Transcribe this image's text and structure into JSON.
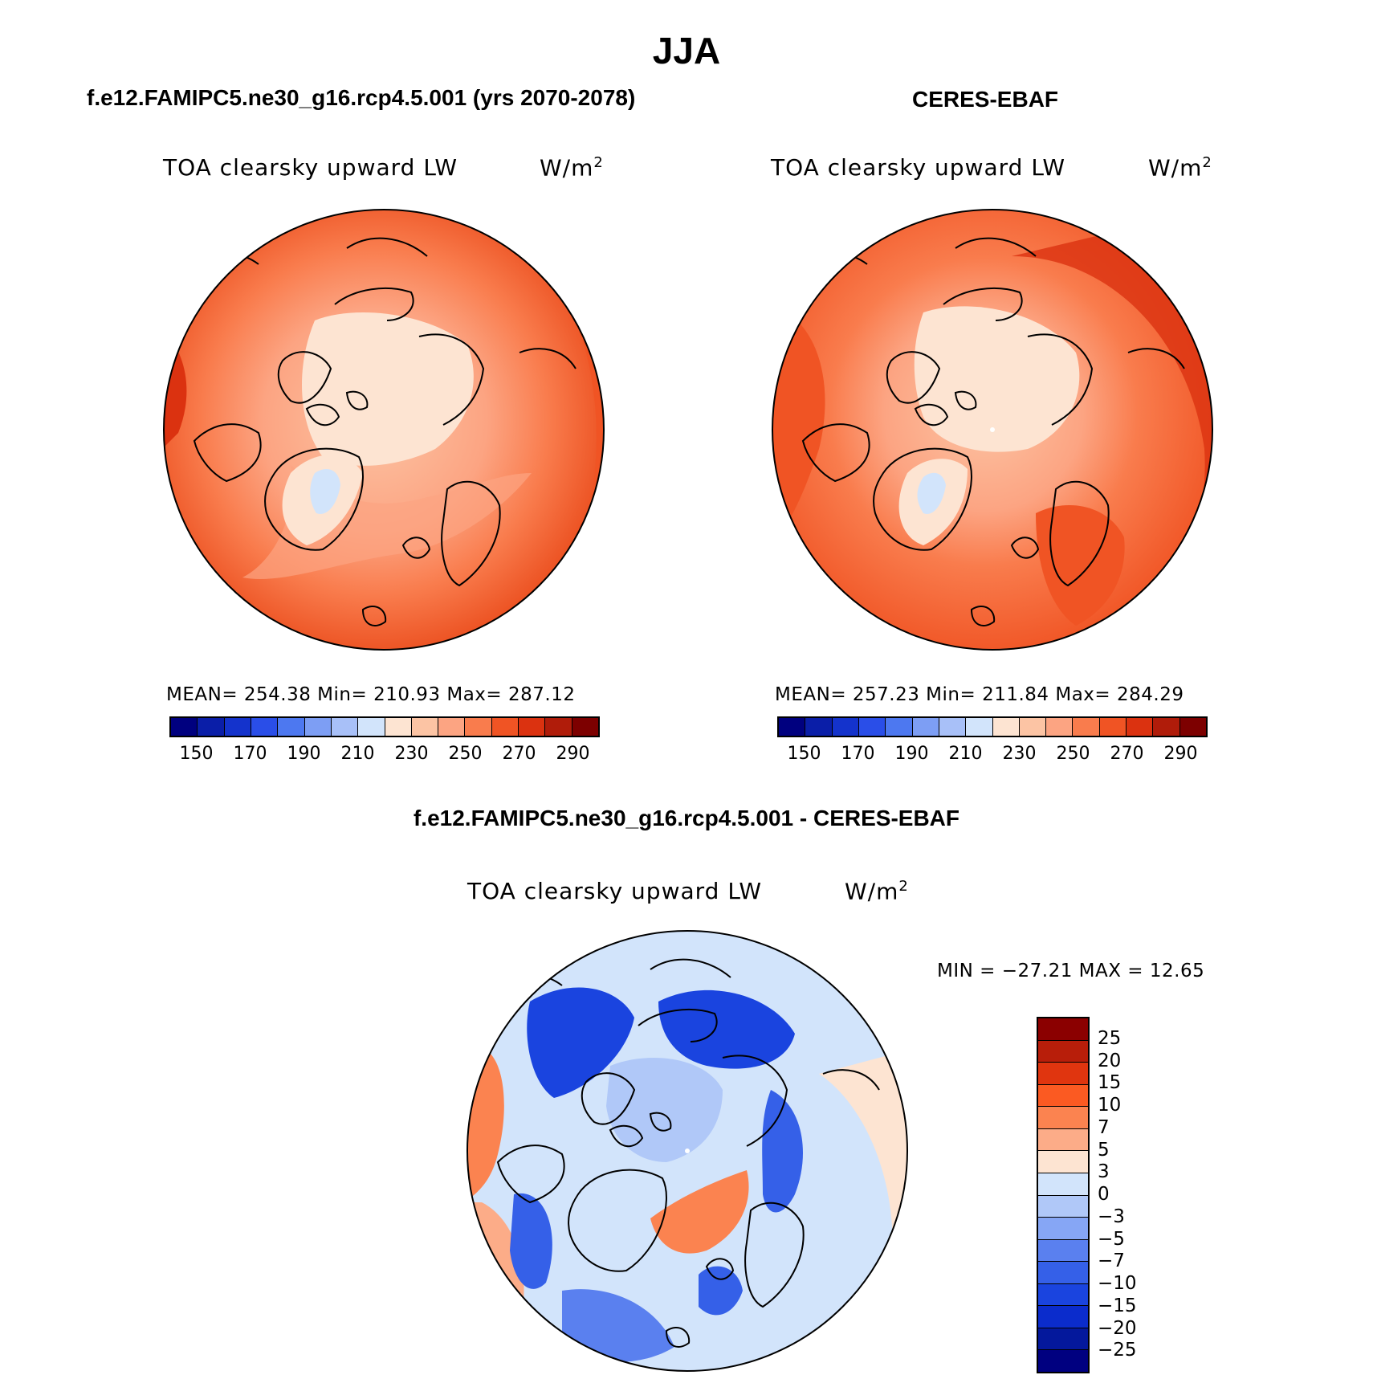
{
  "title": "JJA",
  "panels": {
    "model": {
      "subtitle": "f.e12.FAMIPC5.ne30_g16.rcp4.5.001 (yrs 2070-2078)",
      "label": "TOA clearsky upward LW",
      "units": "W/m",
      "units_sup": "2",
      "stats": "MEAN= 254.38   Min= 210.93   Max= 287.12"
    },
    "obs": {
      "subtitle": "CERES-EBAF",
      "label": "TOA clearsky upward LW",
      "units": "W/m",
      "units_sup": "2",
      "stats": "MEAN= 257.23   Min= 211.84   Max= 284.29"
    },
    "diff": {
      "subtitle": "f.e12.FAMIPC5.ne30_g16.rcp4.5.001 - CERES-EBAF",
      "label": "TOA clearsky upward LW",
      "units": "W/m",
      "units_sup": "2",
      "stats": "MIN = −27.21 MAX =   12.65"
    }
  },
  "chart_data": [
    {
      "type": "heatmap",
      "title": "TOA clearsky upward LW",
      "subtitle": "f.e12.FAMIPC5.ne30_g16.rcp4.5.001 (yrs 2070-2078)",
      "projection": "north polar stereographic",
      "units": "W/m2",
      "mean": 254.38,
      "min": 210.93,
      "max": 287.12,
      "colorbar_levels": [
        150,
        160,
        170,
        180,
        190,
        200,
        210,
        220,
        230,
        240,
        250,
        260,
        270,
        280,
        290
      ],
      "colorbar_tick_labels": [
        "150",
        "170",
        "190",
        "210",
        "230",
        "250",
        "270",
        "290"
      ],
      "colors": [
        "#00007f",
        "#0a1ea8",
        "#1433cc",
        "#2a4ee8",
        "#4d78f0",
        "#7d9ef4",
        "#a8c0f8",
        "#d2e4fb",
        "#fde4d2",
        "#fcc4a4",
        "#fca482",
        "#f97c4d",
        "#f05424",
        "#db3210",
        "#b01c0a",
        "#7d0000"
      ]
    },
    {
      "type": "heatmap",
      "title": "TOA clearsky upward LW",
      "subtitle": "CERES-EBAF",
      "projection": "north polar stereographic",
      "units": "W/m2",
      "mean": 257.23,
      "min": 211.84,
      "max": 284.29,
      "colorbar_levels": [
        150,
        160,
        170,
        180,
        190,
        200,
        210,
        220,
        230,
        240,
        250,
        260,
        270,
        280,
        290
      ],
      "colorbar_tick_labels": [
        "150",
        "170",
        "190",
        "210",
        "230",
        "250",
        "270",
        "290"
      ],
      "colors": [
        "#00007f",
        "#0a1ea8",
        "#1433cc",
        "#2a4ee8",
        "#4d78f0",
        "#7d9ef4",
        "#a8c0f8",
        "#d2e4fb",
        "#fde4d2",
        "#fcc4a4",
        "#fca482",
        "#f97c4d",
        "#f05424",
        "#db3210",
        "#b01c0a",
        "#7d0000"
      ]
    },
    {
      "type": "heatmap",
      "title": "TOA clearsky upward LW",
      "subtitle": "f.e12.FAMIPC5.ne30_g16.rcp4.5.001 - CERES-EBAF",
      "projection": "north polar stereographic",
      "units": "W/m2",
      "min": -27.21,
      "max": 12.65,
      "colorbar_tick_labels": [
        "25",
        "20",
        "15",
        "10",
        "7",
        "5",
        "3",
        "0",
        "−3",
        "−5",
        "−7",
        "−10",
        "−15",
        "−20",
        "−25"
      ],
      "colors": [
        "#8b0000",
        "#b81e0a",
        "#e0350f",
        "#fb5a22",
        "#fb8350",
        "#fcac88",
        "#fde4d2",
        "#d2e4fb",
        "#b0c8f8",
        "#86a6f5",
        "#5a80ef",
        "#3560e8",
        "#1a44df",
        "#0b2ccc",
        "#04189c",
        "#000080"
      ]
    }
  ],
  "legend": {
    "tick_labels_abs": [
      "150",
      "170",
      "190",
      "210",
      "230",
      "250",
      "270",
      "290"
    ],
    "tick_labels_diff": [
      "25",
      "20",
      "15",
      "10",
      "7",
      "5",
      "3",
      "0",
      "−3",
      "−5",
      "−7",
      "−10",
      "−15",
      "−20",
      "−25"
    ],
    "abs_colors": [
      "#00007f",
      "#0a1ea8",
      "#1433cc",
      "#2a4ee8",
      "#4d78f0",
      "#7d9ef4",
      "#a8c0f8",
      "#d2e4fb",
      "#fde4d2",
      "#fcc4a4",
      "#fca482",
      "#f97c4d",
      "#f05424",
      "#db3210",
      "#b01c0a",
      "#7d0000"
    ],
    "diff_colors": [
      "#8b0000",
      "#b81e0a",
      "#e0350f",
      "#fb5a22",
      "#fb8350",
      "#fcac88",
      "#fde4d2",
      "#d2e4fb",
      "#b0c8f8",
      "#86a6f5",
      "#5a80ef",
      "#3560e8",
      "#1a44df",
      "#0b2ccc",
      "#04189c",
      "#000080"
    ]
  }
}
